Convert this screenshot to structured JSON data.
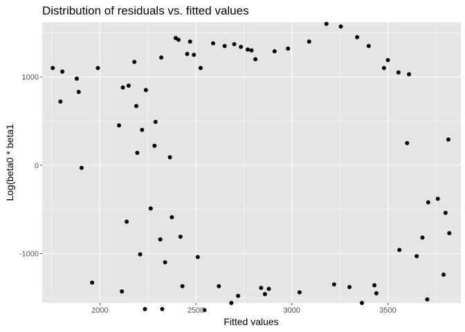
{
  "chart_data": {
    "type": "scatter",
    "title": "Distribution of residuals vs. fitted values",
    "xlabel": "Fitted values",
    "ylabel": "Log(beta0 * beta1",
    "xlim": [
      1700,
      3880
    ],
    "ylim": [
      -1560,
      1620
    ],
    "x_ticks": [
      2000,
      2500,
      3000,
      3500
    ],
    "x_tick_labels": [
      "2000",
      "2500",
      "3000",
      "3500"
    ],
    "y_ticks": [
      -1000,
      0,
      1000
    ],
    "y_tick_labels": [
      "-1000",
      "0",
      "1000"
    ],
    "grid": true,
    "point_color": "#000000",
    "panel_background": "#e5e5e5",
    "grid_color": "#ffffff",
    "legend": "none",
    "points": [
      [
        1755,
        1100
      ],
      [
        1795,
        720
      ],
      [
        1805,
        1060
      ],
      [
        1880,
        980
      ],
      [
        1890,
        830
      ],
      [
        1905,
        -30
      ],
      [
        1960,
        -1330
      ],
      [
        1990,
        1100
      ],
      [
        2100,
        450
      ],
      [
        2115,
        -1430
      ],
      [
        2120,
        880
      ],
      [
        2140,
        -640
      ],
      [
        2150,
        900
      ],
      [
        2180,
        1170
      ],
      [
        2190,
        670
      ],
      [
        2195,
        140
      ],
      [
        2210,
        -1010
      ],
      [
        2220,
        400
      ],
      [
        2235,
        -1630
      ],
      [
        2240,
        850
      ],
      [
        2265,
        -490
      ],
      [
        2285,
        220
      ],
      [
        2290,
        490
      ],
      [
        2315,
        -840
      ],
      [
        2320,
        1220
      ],
      [
        2325,
        -1630
      ],
      [
        2340,
        -1100
      ],
      [
        2365,
        90
      ],
      [
        2375,
        -590
      ],
      [
        2395,
        1440
      ],
      [
        2410,
        1420
      ],
      [
        2420,
        -810
      ],
      [
        2430,
        -1370
      ],
      [
        2455,
        1260
      ],
      [
        2470,
        1400
      ],
      [
        2490,
        1250
      ],
      [
        2510,
        -1040
      ],
      [
        2525,
        1100
      ],
      [
        2545,
        -1640
      ],
      [
        2590,
        1380
      ],
      [
        2620,
        -1370
      ],
      [
        2650,
        1350
      ],
      [
        2685,
        -1560
      ],
      [
        2700,
        1370
      ],
      [
        2720,
        -1480
      ],
      [
        2735,
        1340
      ],
      [
        2770,
        1310
      ],
      [
        2790,
        1300
      ],
      [
        2810,
        1200
      ],
      [
        2840,
        -1390
      ],
      [
        2860,
        -1460
      ],
      [
        2880,
        -1400
      ],
      [
        2910,
        1290
      ],
      [
        2980,
        1320
      ],
      [
        3040,
        -1440
      ],
      [
        3090,
        1400
      ],
      [
        3180,
        1600
      ],
      [
        3220,
        -1350
      ],
      [
        3255,
        1570
      ],
      [
        3300,
        -1380
      ],
      [
        3340,
        1450
      ],
      [
        3365,
        -1560
      ],
      [
        3400,
        1350
      ],
      [
        3430,
        -1360
      ],
      [
        3440,
        -1450
      ],
      [
        3480,
        1100
      ],
      [
        3500,
        1190
      ],
      [
        3555,
        1050
      ],
      [
        3610,
        1030
      ],
      [
        3650,
        -1030
      ],
      [
        3680,
        -820
      ],
      [
        3705,
        -1520
      ],
      [
        3710,
        -420
      ],
      [
        3760,
        -380
      ],
      [
        3790,
        -1240
      ],
      [
        3800,
        -540
      ],
      [
        3815,
        290
      ],
      [
        3820,
        -770
      ],
      [
        3600,
        250
      ],
      [
        3560,
        -960
      ]
    ]
  }
}
